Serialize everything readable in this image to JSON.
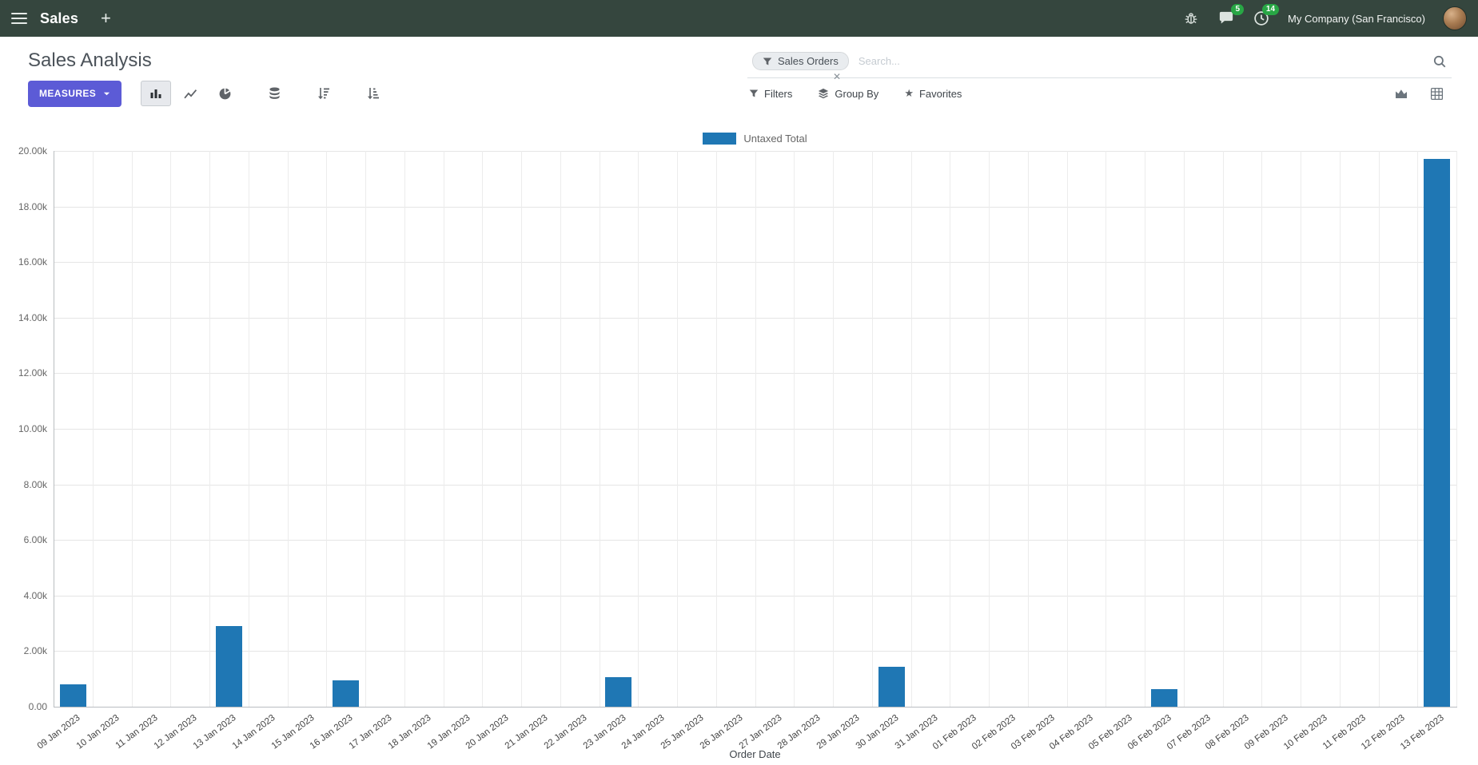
{
  "navbar": {
    "app_name": "Sales",
    "company_name": "My Company (San Francisco)",
    "badges": {
      "messages": "5",
      "activities": "14"
    }
  },
  "control_panel": {
    "title": "Sales Analysis",
    "measures_button": "MEASURES",
    "search": {
      "facet": "Sales Orders",
      "placeholder": "Search..."
    },
    "filters_label": "Filters",
    "group_by_label": "Group By",
    "favorites_label": "Favorites"
  },
  "icons": [
    "menu-icon",
    "plus-icon",
    "bug-icon",
    "messages-icon",
    "activities-clock-icon",
    "filter-funnel-icon",
    "search-icon",
    "close-icon",
    "caret-down-icon",
    "bar-chart-icon",
    "line-chart-icon",
    "pie-chart-icon",
    "stacked-database-icon",
    "sort-desc-icon",
    "sort-asc-icon",
    "layers-icon",
    "star-icon",
    "area-chart-view-icon",
    "pivot-view-icon"
  ],
  "chart_data": {
    "type": "bar",
    "title": "",
    "legend": [
      "Untaxed Total"
    ],
    "legend_position": "top",
    "series_color": "#1f77b4",
    "grid": true,
    "xlabel": "Order Date",
    "ylabel": "",
    "ylim": [
      0,
      20000
    ],
    "ytick_labels": [
      "0.00",
      "2.00k",
      "4.00k",
      "6.00k",
      "8.00k",
      "10.00k",
      "12.00k",
      "14.00k",
      "16.00k",
      "18.00k",
      "20.00k"
    ],
    "categories": [
      "09 Jan 2023",
      "10 Jan 2023",
      "11 Jan 2023",
      "12 Jan 2023",
      "13 Jan 2023",
      "14 Jan 2023",
      "15 Jan 2023",
      "16 Jan 2023",
      "17 Jan 2023",
      "18 Jan 2023",
      "19 Jan 2023",
      "20 Jan 2023",
      "21 Jan 2023",
      "22 Jan 2023",
      "23 Jan 2023",
      "24 Jan 2023",
      "25 Jan 2023",
      "26 Jan 2023",
      "27 Jan 2023",
      "28 Jan 2023",
      "29 Jan 2023",
      "30 Jan 2023",
      "31 Jan 2023",
      "01 Feb 2023",
      "02 Feb 2023",
      "03 Feb 2023",
      "04 Feb 2023",
      "05 Feb 2023",
      "06 Feb 2023",
      "07 Feb 2023",
      "08 Feb 2023",
      "09 Feb 2023",
      "10 Feb 2023",
      "11 Feb 2023",
      "12 Feb 2023",
      "13 Feb 2023"
    ],
    "values": [
      800,
      0,
      0,
      0,
      2900,
      0,
      0,
      950,
      0,
      0,
      0,
      0,
      0,
      0,
      1050,
      0,
      0,
      0,
      0,
      0,
      0,
      1450,
      0,
      0,
      0,
      0,
      0,
      0,
      620,
      0,
      0,
      0,
      0,
      0,
      0,
      19700
    ]
  }
}
